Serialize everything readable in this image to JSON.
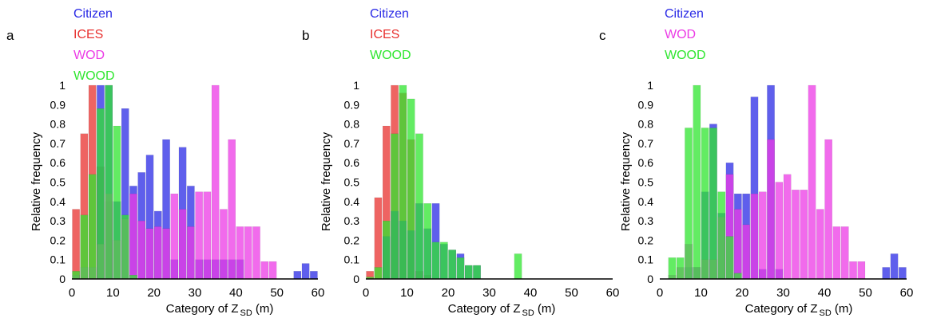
{
  "figure": {
    "colors": {
      "Citizen": "#2a2ae6",
      "ICES": "#e8302e",
      "WOD": "#ec3ae6",
      "WOOD": "#2fe62f"
    }
  },
  "chart_data": [
    {
      "panel_label": "a",
      "type": "bar",
      "xlabel": "Category of Z",
      "xlabel_sub": "SD",
      "xlabel_unit": "(m)",
      "ylabel": "Relative frequency",
      "xlim": [
        0,
        60
      ],
      "ylim": [
        0,
        1
      ],
      "x_ticks": [
        "0",
        "10",
        "20",
        "30",
        "40",
        "50",
        "60"
      ],
      "y_ticks": [
        "0",
        "0.1",
        "0.2",
        "0.3",
        "0.4",
        "0.5",
        "0.6",
        "0.7",
        "0.8",
        "0.9",
        "1"
      ],
      "legend": [
        "Citizen",
        "ICES",
        "WOD",
        "WOOD"
      ],
      "series": [
        {
          "name": "ICES",
          "x": [
            1,
            3,
            5,
            7,
            9
          ],
          "values": [
            0.36,
            0.75,
            1.0,
            0.58,
            0.4
          ]
        },
        {
          "name": "Citizen",
          "x": [
            7,
            9,
            11,
            13,
            15,
            17,
            19,
            21,
            23,
            25,
            27,
            29,
            31,
            33,
            35,
            37,
            39,
            41,
            43,
            45,
            47,
            49,
            51,
            53,
            55,
            57,
            59
          ],
          "values": [
            1.0,
            1.0,
            0.4,
            0.88,
            0.48,
            0.55,
            0.64,
            0.35,
            0.72,
            0.1,
            0.68,
            0.48,
            0.1,
            0.1,
            0.1,
            0.1,
            0.1,
            0.1,
            0,
            0,
            0,
            0,
            0,
            0,
            0.04,
            0.08,
            0.04
          ]
        },
        {
          "name": "WOD",
          "x": [
            1,
            3,
            5,
            7,
            9,
            11,
            13,
            15,
            17,
            19,
            21,
            23,
            25,
            27,
            29,
            31,
            33,
            35,
            37,
            39,
            41,
            43,
            45,
            47,
            49
          ],
          "values": [
            0.02,
            0.06,
            0.06,
            0.18,
            0.44,
            0.2,
            0.31,
            0.44,
            0.3,
            0.26,
            0.27,
            0.26,
            0.44,
            0.36,
            0.27,
            0.45,
            0.45,
            1.0,
            0.36,
            0.72,
            0.27,
            0.27,
            0.27,
            0.09,
            0.09
          ]
        },
        {
          "name": "WOOD",
          "x": [
            1,
            3,
            5,
            7,
            9,
            11,
            13,
            15
          ],
          "values": [
            0.04,
            0.33,
            0.54,
            0.88,
            1.0,
            0.79,
            0.33,
            0.02
          ]
        }
      ]
    },
    {
      "panel_label": "b",
      "type": "bar",
      "xlabel": "Category of Z",
      "xlabel_sub": "SD",
      "xlabel_unit": "(m)",
      "ylabel": "Relative frequency",
      "xlim": [
        0,
        60
      ],
      "ylim": [
        0,
        1
      ],
      "x_ticks": [
        "0",
        "10",
        "20",
        "30",
        "40",
        "50",
        "60"
      ],
      "y_ticks": [
        "0",
        "0.1",
        "0.2",
        "0.3",
        "0.4",
        "0.5",
        "0.6",
        "0.7",
        "0.8",
        "0.9",
        "1"
      ],
      "legend": [
        "Citizen",
        "ICES",
        "WOOD"
      ],
      "series": [
        {
          "name": "ICES",
          "x": [
            1,
            3,
            5,
            7,
            9,
            11,
            13,
            15
          ],
          "values": [
            0.04,
            0.42,
            0.79,
            1.0,
            0.96,
            0.72,
            0.04,
            0.02
          ]
        },
        {
          "name": "Citizen",
          "x": [
            5,
            7,
            9,
            11,
            13,
            15,
            17,
            19,
            21,
            23,
            25,
            27
          ],
          "values": [
            0.22,
            0.35,
            0.3,
            0.25,
            0.39,
            0.26,
            0.39,
            0.18,
            0.15,
            0.13,
            0.07,
            0.07
          ]
        },
        {
          "name": "WOOD",
          "x": [
            1,
            3,
            5,
            7,
            9,
            11,
            13,
            15,
            17,
            19,
            21,
            23,
            25,
            27,
            37
          ],
          "values": [
            0.01,
            0.06,
            0.3,
            0.75,
            1.0,
            0.93,
            0.75,
            0.39,
            0.19,
            0.19,
            0.15,
            0.11,
            0.07,
            0.07,
            0.13
          ]
        }
      ]
    },
    {
      "panel_label": "c",
      "type": "bar",
      "xlabel": "Category of Z",
      "xlabel_sub": "SD",
      "xlabel_unit": "(m)",
      "ylabel": "Relative frequency",
      "xlim": [
        0,
        60
      ],
      "ylim": [
        0,
        1
      ],
      "x_ticks": [
        "0",
        "10",
        "20",
        "30",
        "40",
        "50",
        "60"
      ],
      "y_ticks": [
        "0",
        "0.1",
        "0.2",
        "0.3",
        "0.4",
        "0.5",
        "0.6",
        "0.7",
        "0.8",
        "0.9",
        "1"
      ],
      "legend": [
        "Citizen",
        "WOD",
        "WOOD"
      ],
      "series": [
        {
          "name": "Citizen",
          "x": [
            7,
            9,
            11,
            13,
            15,
            17,
            19,
            21,
            23,
            25,
            27,
            29,
            55,
            57,
            59
          ],
          "values": [
            0.06,
            0.06,
            0.45,
            0.8,
            0.34,
            0.6,
            0.44,
            0.44,
            0.94,
            0.05,
            1.0,
            0.05,
            0.06,
            0.13,
            0.06
          ]
        },
        {
          "name": "WOD",
          "x": [
            3,
            5,
            7,
            9,
            11,
            13,
            15,
            17,
            19,
            21,
            23,
            25,
            27,
            29,
            31,
            33,
            35,
            37,
            39,
            41,
            43,
            45,
            47,
            49
          ],
          "values": [
            0.02,
            0.06,
            0.18,
            0.06,
            0.1,
            0.1,
            0.32,
            0.54,
            0.36,
            0.28,
            0.44,
            0.45,
            0.72,
            0.5,
            0.54,
            0.46,
            0.46,
            1.0,
            0.36,
            0.72,
            0.27,
            0.27,
            0.09,
            0.09
          ]
        },
        {
          "name": "WOOD",
          "x": [
            3,
            5,
            7,
            9,
            11,
            13,
            15,
            17,
            19
          ],
          "values": [
            0.11,
            0.11,
            0.78,
            1.0,
            0.78,
            0.78,
            0.45,
            0.22,
            0.03
          ]
        }
      ]
    }
  ]
}
